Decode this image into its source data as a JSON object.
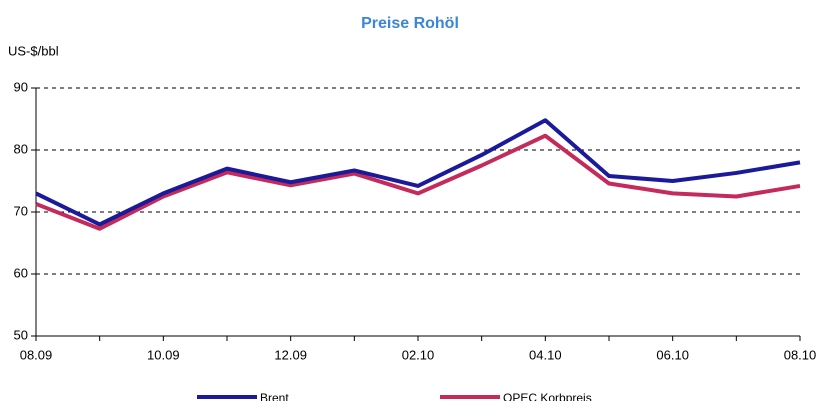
{
  "chart_data": {
    "type": "line",
    "title": "Preise Rohöl",
    "y_label": "US-$/bbl",
    "categories": [
      "08.09",
      null,
      "10.09",
      null,
      "12.09",
      null,
      "02.10",
      null,
      "04.10",
      null,
      "06.10",
      null,
      "08.10"
    ],
    "series": [
      {
        "name": "Brent",
        "color": "#1a1a9a",
        "values": [
          73,
          68,
          73,
          77,
          74.8,
          76.7,
          74.2,
          79.2,
          84.8,
          75.8,
          75.0,
          76.3,
          78.0
        ]
      },
      {
        "name": "OPEC Korbpreis",
        "color": "#c42a5a",
        "values": [
          71.3,
          67.3,
          72.5,
          76.4,
          74.3,
          76.2,
          73.0,
          77.5,
          82.3,
          74.6,
          73.0,
          72.5,
          74.2
        ]
      }
    ],
    "ylim": [
      50,
      90
    ],
    "yticks": [
      50,
      60,
      70,
      80,
      90
    ],
    "grid": true,
    "legend": "bottom"
  }
}
